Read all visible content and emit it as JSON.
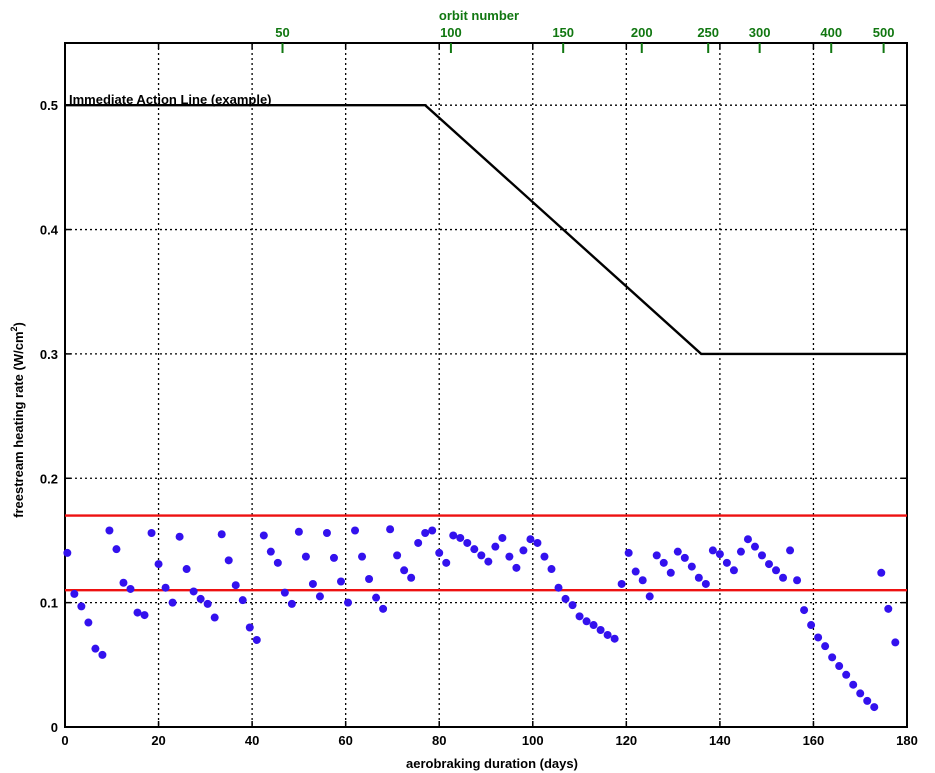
{
  "chart_data": {
    "type": "scatter",
    "xlabel": "aerobraking duration (days)",
    "ylabel": "freestream heating rate (W/cm",
    "ylabel_sup": "2",
    "ylabel_end": ")",
    "top_axis_label": "orbit number",
    "xlim": [
      0,
      180
    ],
    "ylim": [
      0,
      0.55
    ],
    "grid": true,
    "x_ticks": [
      0,
      20,
      40,
      60,
      80,
      100,
      120,
      140,
      160,
      180
    ],
    "y_ticks": [
      0,
      0.1,
      0.2,
      0.3,
      0.4,
      0.5
    ],
    "x_tick_labels": [
      "0",
      "20",
      "40",
      "60",
      "80",
      "100",
      "120",
      "140",
      "160",
      "180"
    ],
    "y_tick_labels": [
      "0",
      "0.1",
      "0.2",
      "0.3",
      "0.4",
      "0.5"
    ],
    "top_ticks": [
      {
        "label": "50",
        "day": 46.5
      },
      {
        "label": "100",
        "day": 82.5
      },
      {
        "label": "150",
        "day": 106.5
      },
      {
        "label": "200",
        "day": 123.3
      },
      {
        "label": "250",
        "day": 137.5
      },
      {
        "label": "300",
        "day": 148.5
      },
      {
        "label": "400",
        "day": 163.8
      },
      {
        "label": "500",
        "day": 175.0
      }
    ],
    "colors": {
      "action_line": "#000000",
      "band_lines": "#ee1111",
      "points": "#3311ee",
      "top_axis": "#117711"
    },
    "annotation": "Immediate Action Line (example)",
    "series": [
      {
        "name": "Immediate Action Line (example)",
        "kind": "line",
        "x": [
          0,
          77,
          136,
          180
        ],
        "y": [
          0.5,
          0.5,
          0.3,
          0.3
        ]
      },
      {
        "kind": "line",
        "x": [
          0,
          180
        ],
        "y": [
          0.17,
          0.17
        ]
      },
      {
        "kind": "line",
        "x": [
          0,
          180
        ],
        "y": [
          0.11,
          0.11
        ]
      },
      {
        "kind": "scatter",
        "x": [
          0.5,
          2,
          3.5,
          5,
          6.5,
          8,
          9.5,
          11,
          12.5,
          14,
          15.5,
          17,
          18.5,
          20,
          21.5,
          23,
          24.5,
          26,
          27.5,
          29,
          30.5,
          32,
          33.5,
          35,
          36.5,
          38,
          39.5,
          41,
          42.5,
          44,
          45.5,
          47,
          48.5,
          50,
          51.5,
          53,
          54.5,
          56,
          57.5,
          59,
          60.5,
          62,
          63.5,
          65,
          66.5,
          68,
          69.5,
          71,
          72.5,
          74,
          75.5,
          77,
          78.5,
          80,
          81.5,
          83,
          84.5,
          86,
          87.5,
          89,
          90.5,
          92,
          93.5,
          95,
          96.5,
          98,
          99.5,
          101,
          102.5,
          104,
          105.5,
          107,
          108.5,
          110,
          111.5,
          113,
          114.5,
          116,
          117.5,
          119,
          120.5,
          122,
          123.5,
          125,
          126.5,
          128,
          129.5,
          131,
          132.5,
          134,
          135.5,
          137,
          138.5,
          140,
          141.5,
          143,
          144.5,
          146,
          147.5,
          149,
          150.5,
          152,
          153.5,
          155,
          156.5,
          158,
          159.5,
          161,
          162.5,
          164,
          165.5,
          167,
          168.5,
          170,
          171.5,
          173,
          174.5,
          176,
          177.5
        ],
        "y": [
          0.14,
          0.107,
          0.097,
          0.084,
          0.063,
          0.058,
          0.158,
          0.143,
          0.116,
          0.111,
          0.092,
          0.09,
          0.156,
          0.131,
          0.112,
          0.1,
          0.153,
          0.127,
          0.109,
          0.103,
          0.099,
          0.088,
          0.155,
          0.134,
          0.114,
          0.102,
          0.08,
          0.07,
          0.154,
          0.141,
          0.132,
          0.108,
          0.099,
          0.157,
          0.137,
          0.115,
          0.105,
          0.156,
          0.136,
          0.117,
          0.1,
          0.158,
          0.137,
          0.119,
          0.104,
          0.095,
          0.159,
          0.138,
          0.126,
          0.12,
          0.148,
          0.156,
          0.158,
          0.14,
          0.132,
          0.154,
          0.152,
          0.148,
          0.143,
          0.138,
          0.133,
          0.145,
          0.152,
          0.137,
          0.128,
          0.142,
          0.151,
          0.148,
          0.137,
          0.127,
          0.112,
          0.103,
          0.098,
          0.089,
          0.085,
          0.082,
          0.078,
          0.074,
          0.071,
          0.115,
          0.14,
          0.125,
          0.118,
          0.105,
          0.138,
          0.132,
          0.124,
          0.141,
          0.136,
          0.129,
          0.12,
          0.115,
          0.142,
          0.139,
          0.132,
          0.126,
          0.141,
          0.151,
          0.145,
          0.138,
          0.131,
          0.126,
          0.12,
          0.142,
          0.118,
          0.094,
          0.082,
          0.072,
          0.065,
          0.056,
          0.049,
          0.042,
          0.034,
          0.027,
          0.021,
          0.016,
          0.124,
          0.095,
          0.068
        ]
      }
    ]
  }
}
